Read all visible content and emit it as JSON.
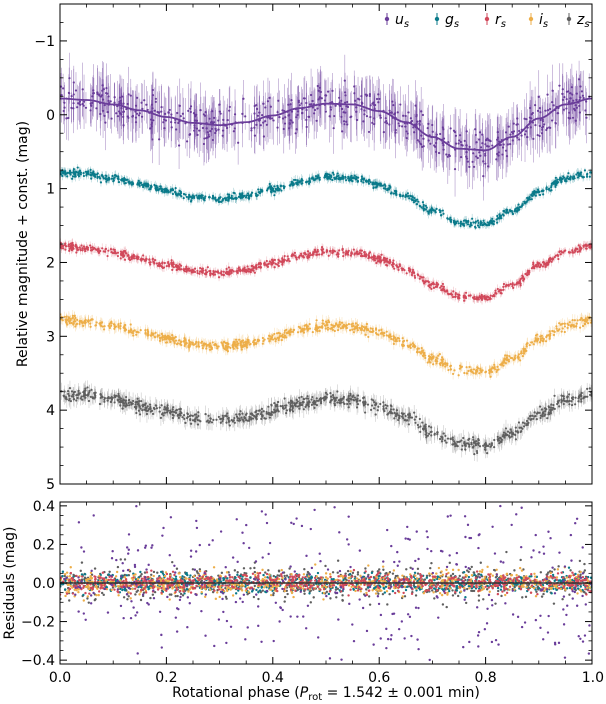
{
  "chart_data": [
    {
      "type": "scatter",
      "panel": "light curves",
      "ylabel": "Relative magnitude + const. (mag)",
      "xlim": [
        0.0,
        1.0
      ],
      "ylim": [
        5.0,
        -1.5
      ],
      "y_inverted": true,
      "yticks": [
        {
          "value": -1,
          "label": "−1"
        },
        {
          "value": 0,
          "label": "0"
        },
        {
          "value": 1,
          "label": "1"
        },
        {
          "value": 2,
          "label": "2"
        },
        {
          "value": 3,
          "label": "3"
        },
        {
          "value": 4,
          "label": "4"
        },
        {
          "value": 5,
          "label": "5"
        }
      ],
      "legend": {
        "placement": "top-right"
      },
      "series": [
        {
          "name": "u",
          "subscript": "s",
          "color": "#6a3d9a",
          "offset": 0.0,
          "model_phase": [
            0.0,
            0.05,
            0.1,
            0.15,
            0.2,
            0.25,
            0.3,
            0.35,
            0.4,
            0.45,
            0.5,
            0.55,
            0.6,
            0.65,
            0.7,
            0.75,
            0.8,
            0.85,
            0.9,
            0.95,
            1.0
          ],
          "model_mag": [
            -0.22,
            -0.2,
            -0.14,
            -0.06,
            0.03,
            0.11,
            0.14,
            0.1,
            0.01,
            -0.09,
            -0.15,
            -0.14,
            -0.05,
            0.1,
            0.3,
            0.46,
            0.48,
            0.3,
            0.05,
            -0.14,
            -0.22
          ],
          "scatter": 0.22
        },
        {
          "name": "g",
          "subscript": "s",
          "color": "#0a7a8a",
          "offset": 1.0,
          "model_phase": [
            0.0,
            0.05,
            0.1,
            0.15,
            0.2,
            0.25,
            0.3,
            0.35,
            0.4,
            0.45,
            0.5,
            0.55,
            0.6,
            0.65,
            0.7,
            0.75,
            0.8,
            0.85,
            0.9,
            0.95,
            1.0
          ],
          "model_mag": [
            -0.22,
            -0.2,
            -0.14,
            -0.06,
            0.03,
            0.11,
            0.14,
            0.1,
            0.01,
            -0.09,
            -0.15,
            -0.14,
            -0.05,
            0.1,
            0.3,
            0.46,
            0.48,
            0.3,
            0.05,
            -0.14,
            -0.22
          ],
          "scatter": 0.04
        },
        {
          "name": "r",
          "subscript": "s",
          "color": "#d1495b",
          "offset": 2.0,
          "model_phase": [
            0.0,
            0.05,
            0.1,
            0.15,
            0.2,
            0.25,
            0.3,
            0.35,
            0.4,
            0.45,
            0.5,
            0.55,
            0.6,
            0.65,
            0.7,
            0.75,
            0.8,
            0.85,
            0.9,
            0.95,
            1.0
          ],
          "model_mag": [
            -0.22,
            -0.2,
            -0.14,
            -0.06,
            0.03,
            0.11,
            0.14,
            0.1,
            0.01,
            -0.09,
            -0.15,
            -0.14,
            -0.05,
            0.1,
            0.3,
            0.46,
            0.48,
            0.3,
            0.05,
            -0.14,
            -0.22
          ],
          "scatter": 0.04
        },
        {
          "name": "i",
          "subscript": "s",
          "color": "#edae49",
          "offset": 3.0,
          "model_phase": [
            0.0,
            0.05,
            0.1,
            0.15,
            0.2,
            0.25,
            0.3,
            0.35,
            0.4,
            0.45,
            0.5,
            0.55,
            0.6,
            0.65,
            0.7,
            0.75,
            0.8,
            0.85,
            0.9,
            0.95,
            1.0
          ],
          "model_mag": [
            -0.22,
            -0.2,
            -0.14,
            -0.06,
            0.03,
            0.11,
            0.14,
            0.1,
            0.01,
            -0.09,
            -0.15,
            -0.14,
            -0.05,
            0.1,
            0.3,
            0.46,
            0.48,
            0.3,
            0.05,
            -0.14,
            -0.22
          ],
          "scatter": 0.05
        },
        {
          "name": "z",
          "subscript": "s",
          "color": "#5f5f5f",
          "offset": 4.0,
          "model_phase": [
            0.0,
            0.05,
            0.1,
            0.15,
            0.2,
            0.25,
            0.3,
            0.35,
            0.4,
            0.45,
            0.5,
            0.55,
            0.6,
            0.65,
            0.7,
            0.75,
            0.8,
            0.85,
            0.9,
            0.95,
            1.0
          ],
          "model_mag": [
            -0.22,
            -0.2,
            -0.14,
            -0.06,
            0.03,
            0.11,
            0.14,
            0.1,
            0.01,
            -0.09,
            -0.15,
            -0.14,
            -0.05,
            0.1,
            0.3,
            0.46,
            0.48,
            0.3,
            0.05,
            -0.14,
            -0.22
          ],
          "scatter": 0.07
        }
      ]
    },
    {
      "type": "scatter",
      "panel": "residuals",
      "ylabel": "Residuals (mag)",
      "xlabel_prefix": "Rotational phase  (",
      "xlabel_symbol": "P",
      "xlabel_sub": "rot",
      "xlabel_rest": " = 1.542 ± 0.001 min)",
      "xlim": [
        0.0,
        1.0
      ],
      "ylim": [
        -0.42,
        0.42
      ],
      "xticks": [
        "0.0",
        "0.2",
        "0.4",
        "0.6",
        "0.8",
        "1.0"
      ],
      "xtick_values": [
        0.0,
        0.2,
        0.4,
        0.6,
        0.8,
        1.0
      ],
      "yticks": [
        {
          "value": -0.4,
          "label": "−0.4"
        },
        {
          "value": -0.2,
          "label": "−0.2"
        },
        {
          "value": 0.0,
          "label": "0.0"
        },
        {
          "value": 0.2,
          "label": "0.2"
        },
        {
          "value": 0.4,
          "label": "0.4"
        }
      ],
      "zero_line": 0.0
    }
  ]
}
